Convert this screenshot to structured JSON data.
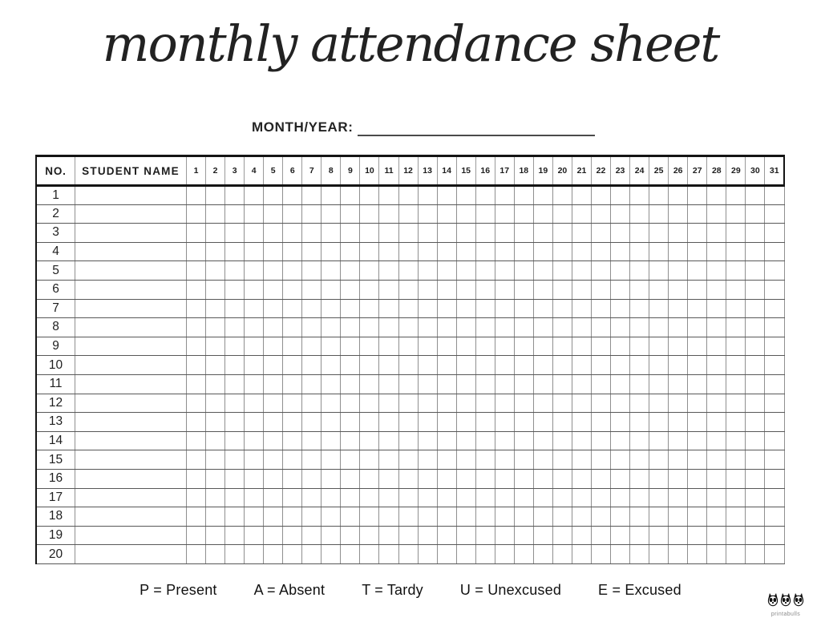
{
  "page": {
    "title_script": "monthly attendance sheet"
  },
  "month_year": {
    "label": "MONTH/YEAR:",
    "value": ""
  },
  "table": {
    "headers": {
      "no": "NO.",
      "student_name": "STUDENT NAME"
    },
    "day_headers": [
      "1",
      "2",
      "3",
      "4",
      "5",
      "6",
      "7",
      "8",
      "9",
      "10",
      "11",
      "12",
      "13",
      "14",
      "15",
      "16",
      "17",
      "18",
      "19",
      "20",
      "21",
      "22",
      "23",
      "24",
      "25",
      "26",
      "27",
      "28",
      "29",
      "30",
      "31"
    ],
    "row_numbers": [
      "1",
      "2",
      "3",
      "4",
      "5",
      "6",
      "7",
      "8",
      "9",
      "10",
      "11",
      "12",
      "13",
      "14",
      "15",
      "16",
      "17",
      "18",
      "19",
      "20"
    ]
  },
  "legend": {
    "items": [
      "P = Present",
      "A = Absent",
      "T = Tardy",
      "U = Unexcused",
      "E = Excused"
    ]
  },
  "branding": {
    "name": "printabulls",
    "logo_icon": "three-bulldog-faces"
  },
  "colors": {
    "page_bg": "#ffffff",
    "ink": "#1d1d1d",
    "heavy_border": "#141414",
    "grid_vertical": "#8f8f8f",
    "grid_horizontal": "#585858",
    "underline": "#4a4a4a",
    "logo_text": "#8a8a8a"
  }
}
